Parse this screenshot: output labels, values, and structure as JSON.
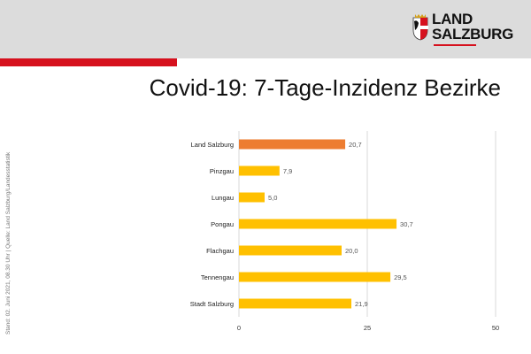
{
  "header": {
    "logo_line1": "LAND",
    "logo_line2": "SALZBURG",
    "title": "Covid-19: 7-Tage-Inzidenz Bezirke",
    "source": "Stand: 02. Juni 2021, 08.30 Uhr | Quelle: Land Salzburg/Landesstatistik"
  },
  "colors": {
    "highlight": "#ed7d31",
    "bar": "#ffc000",
    "grid": "#d9d9d9",
    "accent_red": "#d6111e"
  },
  "chart_data": {
    "type": "bar",
    "orientation": "horizontal",
    "title": "Covid-19: 7-Tage-Inzidenz Bezirke",
    "categories": [
      "Land Salzburg",
      "Pinzgau",
      "Lungau",
      "Pongau",
      "Flachgau",
      "Tennengau",
      "Stadt Salzburg"
    ],
    "values": [
      20.7,
      7.9,
      5.0,
      30.7,
      20.0,
      29.5,
      21.9
    ],
    "value_labels": [
      "20,7",
      "7,9",
      "5,0",
      "30,7",
      "20,0",
      "29,5",
      "21,9"
    ],
    "highlight_index": 0,
    "xlim": [
      0,
      50
    ],
    "xticks": [
      0,
      25,
      50
    ],
    "xtick_labels": [
      "0",
      "25",
      "50"
    ],
    "grid": true,
    "legend": "none"
  }
}
